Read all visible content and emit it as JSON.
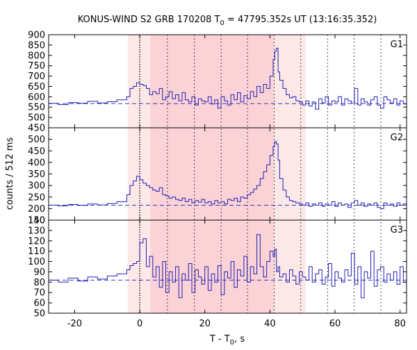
{
  "chart_data": {
    "type": "line",
    "title": "KONUS-WIND S2 GRB 170208 T",
    "title_sub": "0",
    "title_rest": " = 47795.352s UT (13:16:35.352)",
    "xlabel": "T - T",
    "xlabel_sub": "0",
    "xlabel_rest": ", s",
    "ylabel": "counts / 512 ms",
    "xlim": [
      -28,
      82
    ],
    "x_ticks": [
      -20,
      0,
      20,
      40,
      60,
      80
    ],
    "x_tick_labels": [
      "-20",
      "0",
      "20",
      "40",
      "60",
      "80"
    ],
    "light_band": [
      -3.7,
      51.0
    ],
    "dark_band": [
      3.3,
      41.2
    ],
    "dotted_verticals": [
      0,
      8.5,
      16.8,
      25.0,
      33.1,
      41.3,
      49.5,
      57.7,
      65.9,
      74.1
    ],
    "series_color": "#1f1fb4",
    "band_light_color": "#fde8e8",
    "band_dark_color": "#fbd3d6",
    "panels": [
      {
        "name": "G1",
        "ylim": [
          450,
          900
        ],
        "y_ticks": [
          450,
          500,
          550,
          600,
          650,
          700,
          750,
          800,
          850,
          900
        ],
        "y_tick_labels": [
          "450",
          "500",
          "550",
          "600",
          "650",
          "700",
          "750",
          "800",
          "850",
          "900"
        ],
        "background_level": 567,
        "x": [
          -28,
          -25,
          -22,
          -19,
          -16,
          -13,
          -10,
          -7,
          -4,
          -3,
          -2,
          -1,
          0,
          1,
          2,
          3,
          4,
          5,
          6,
          7,
          8,
          9,
          10,
          11,
          12,
          13,
          14,
          15,
          16,
          17,
          18,
          19,
          20,
          21,
          22,
          23,
          24,
          25,
          26,
          27,
          28,
          29,
          30,
          31,
          32,
          33,
          34,
          35,
          36,
          37,
          38,
          39,
          40,
          41,
          41.5,
          42,
          42.5,
          43,
          44,
          45,
          46,
          47,
          48,
          49,
          50,
          51,
          52,
          53,
          54,
          55,
          56,
          57,
          58,
          59,
          60,
          61,
          62,
          63,
          64,
          65,
          66,
          67,
          68,
          69,
          70,
          71,
          72,
          73,
          74,
          75,
          76,
          77,
          78,
          79,
          80,
          81,
          82
        ],
        "values": [
          568,
          562,
          572,
          569,
          578,
          570,
          576,
          585,
          600,
          640,
          650,
          668,
          660,
          655,
          640,
          610,
          625,
          615,
          640,
          585,
          600,
          625,
          590,
          610,
          580,
          620,
          585,
          575,
          600,
          560,
          590,
          580,
          575,
          600,
          565,
          585,
          545,
          600,
          580,
          560,
          610,
          585,
          620,
          575,
          605,
          590,
          625,
          600,
          650,
          620,
          660,
          640,
          700,
          780,
          820,
          835,
          720,
          680,
          640,
          610,
          595,
          600,
          580,
          575,
          560,
          580,
          555,
          575,
          540,
          590,
          570,
          600,
          560,
          580,
          575,
          600,
          560,
          590,
          580,
          570,
          640,
          560,
          590,
          575,
          560,
          585,
          600,
          560,
          545,
          600,
          585,
          570,
          590,
          560,
          580,
          565,
          575
        ]
      },
      {
        "name": "G2",
        "ylim": [
          150,
          550
        ],
        "y_ticks": [
          150,
          200,
          250,
          300,
          350,
          400,
          450,
          500
        ],
        "y_tick_labels": [
          "150",
          "200",
          "250",
          "300",
          "350",
          "400",
          "450",
          "500"
        ],
        "background_level": 215,
        "x": [
          -28,
          -25,
          -22,
          -19,
          -16,
          -13,
          -10,
          -7,
          -4,
          -3,
          -2,
          -1,
          0,
          1,
          2,
          3,
          4,
          5,
          6,
          7,
          8,
          9,
          10,
          11,
          12,
          13,
          14,
          15,
          16,
          17,
          18,
          19,
          20,
          21,
          22,
          23,
          24,
          25,
          26,
          27,
          28,
          29,
          30,
          31,
          32,
          33,
          34,
          35,
          36,
          37,
          38,
          39,
          40,
          41,
          41.5,
          42,
          42.5,
          43,
          44,
          45,
          46,
          47,
          48,
          49,
          50,
          51,
          52,
          53,
          54,
          55,
          56,
          57,
          58,
          59,
          60,
          61,
          62,
          63,
          64,
          65,
          66,
          67,
          68,
          69,
          70,
          71,
          72,
          73,
          74,
          75,
          76,
          77,
          78,
          79,
          80,
          81,
          82
        ],
        "values": [
          215,
          212,
          218,
          214,
          220,
          216,
          222,
          230,
          260,
          300,
          320,
          340,
          325,
          310,
          300,
          290,
          280,
          275,
          290,
          260,
          255,
          245,
          250,
          240,
          235,
          245,
          230,
          240,
          225,
          235,
          228,
          240,
          225,
          230,
          220,
          235,
          225,
          230,
          220,
          240,
          235,
          245,
          230,
          250,
          245,
          260,
          270,
          285,
          300,
          330,
          360,
          390,
          430,
          470,
          490,
          480,
          410,
          330,
          280,
          250,
          235,
          230,
          225,
          220,
          215,
          225,
          210,
          220,
          215,
          225,
          210,
          220,
          215,
          230,
          210,
          225,
          215,
          220,
          205,
          225,
          235,
          215,
          225,
          210,
          220,
          215,
          225,
          205,
          200,
          225,
          215,
          220,
          210,
          225,
          215,
          220,
          225
        ]
      },
      {
        "name": "G3",
        "ylim": [
          50,
          140
        ],
        "y_ticks": [
          50,
          60,
          70,
          80,
          90,
          100,
          110,
          120,
          130,
          140
        ],
        "y_tick_labels": [
          "50",
          "60",
          "70",
          "80",
          "90",
          "100",
          "110",
          "120",
          "130",
          "140"
        ],
        "background_level": 82,
        "x": [
          -28,
          -25,
          -22,
          -19,
          -16,
          -13,
          -10,
          -7,
          -4,
          -3,
          -2,
          -1,
          0,
          1,
          2,
          3,
          4,
          5,
          6,
          7,
          8,
          9,
          10,
          11,
          12,
          13,
          14,
          15,
          16,
          17,
          18,
          19,
          20,
          21,
          22,
          23,
          24,
          25,
          26,
          27,
          28,
          29,
          30,
          31,
          32,
          33,
          34,
          35,
          36,
          37,
          38,
          39,
          40,
          41,
          41.5,
          42,
          42.5,
          43,
          44,
          45,
          46,
          47,
          48,
          49,
          50,
          51,
          52,
          53,
          54,
          55,
          56,
          57,
          58,
          59,
          60,
          61,
          62,
          63,
          64,
          65,
          66,
          67,
          68,
          69,
          70,
          71,
          72,
          73,
          74,
          75,
          76,
          77,
          78,
          79,
          80,
          81,
          82
        ],
        "values": [
          82,
          80,
          84,
          81,
          85,
          83,
          86,
          88,
          92,
          96,
          98,
          100,
          118,
          122,
          95,
          105,
          85,
          95,
          75,
          100,
          70,
          90,
          80,
          95,
          65,
          88,
          82,
          98,
          70,
          92,
          85,
          78,
          95,
          72,
          88,
          80,
          96,
          68,
          90,
          84,
          100,
          75,
          92,
          86,
          105,
          80,
          95,
          88,
          126,
          95,
          85,
          100,
          110,
          105,
          112,
          90,
          95,
          85,
          88,
          80,
          92,
          86,
          78,
          90,
          85,
          82,
          95,
          80,
          88,
          92,
          78,
          85,
          98,
          76,
          90,
          84,
          80,
          92,
          86,
          108,
          78,
          95,
          65,
          90,
          84,
          110,
          76,
          92,
          95,
          80,
          88,
          82,
          90,
          78,
          95,
          80,
          82
        ]
      }
    ]
  }
}
